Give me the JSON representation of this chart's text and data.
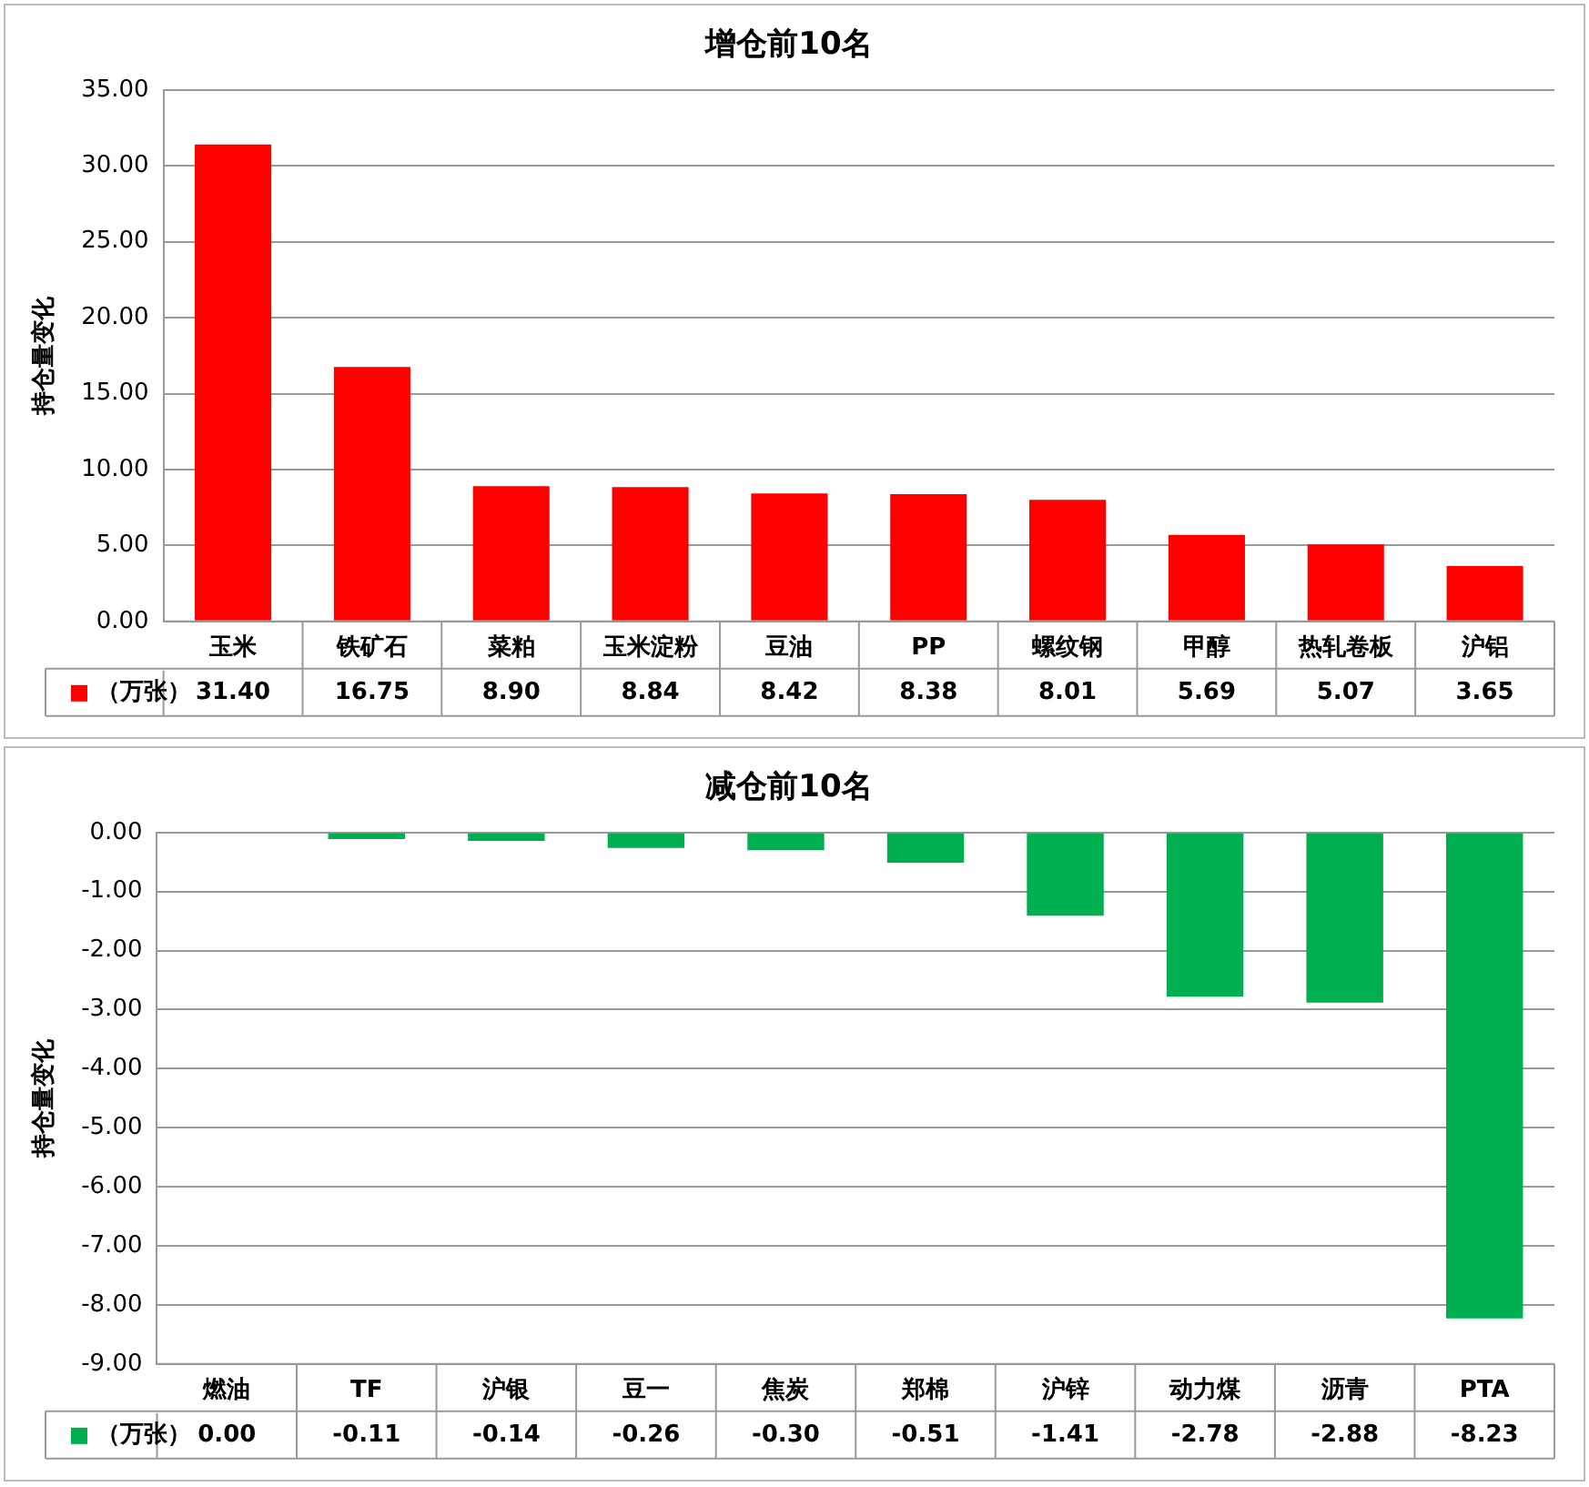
{
  "chart_data": [
    {
      "type": "bar",
      "title": "增仓前10名",
      "ylabel": "持仓量变化",
      "categories": [
        "玉米",
        "铁矿石",
        "菜粕",
        "玉米淀粉",
        "豆油",
        "PP",
        "螺纹钢",
        "甲醇",
        "热轧卷板",
        "沪铝"
      ],
      "series": [
        {
          "name": "（万张）",
          "color": "#ff0000",
          "values": [
            31.4,
            16.75,
            8.9,
            8.84,
            8.42,
            8.38,
            8.01,
            5.69,
            5.07,
            3.65
          ],
          "value_labels": [
            "31.40",
            "16.75",
            "8.90",
            "8.84",
            "8.42",
            "8.38",
            "8.01",
            "5.69",
            "5.07",
            "3.65"
          ]
        }
      ],
      "ylim": [
        0,
        35
      ],
      "yticks": [
        {
          "value": 0,
          "label": "0.00"
        },
        {
          "value": 5,
          "label": "5.00"
        },
        {
          "value": 10,
          "label": "10.00"
        },
        {
          "value": 15,
          "label": "15.00"
        },
        {
          "value": 20,
          "label": "20.00"
        },
        {
          "value": 25,
          "label": "25.00"
        },
        {
          "value": 30,
          "label": "30.00"
        },
        {
          "value": 35,
          "label": "35.00"
        }
      ],
      "grid": "y",
      "legend": "bottom"
    },
    {
      "type": "bar",
      "title": "减仓前10名",
      "ylabel": "持仓量变化",
      "categories": [
        "燃油",
        "TF",
        "沪银",
        "豆一",
        "焦炭",
        "郑棉",
        "沪锌",
        "动力煤",
        "沥青",
        "PTA"
      ],
      "series": [
        {
          "name": "（万张）",
          "color": "#00b050",
          "values": [
            0.0,
            -0.11,
            -0.14,
            -0.26,
            -0.3,
            -0.51,
            -1.41,
            -2.78,
            -2.88,
            -8.23
          ],
          "value_labels": [
            "0.00",
            "-0.11",
            "-0.14",
            "-0.26",
            "-0.30",
            "-0.51",
            "-1.41",
            "-2.78",
            "-2.88",
            "-8.23"
          ]
        }
      ],
      "ylim": [
        -9,
        0
      ],
      "yticks": [
        {
          "value": 0,
          "label": "0.00"
        },
        {
          "value": -1,
          "label": "-1.00"
        },
        {
          "value": -2,
          "label": "-2.00"
        },
        {
          "value": -3,
          "label": "-3.00"
        },
        {
          "value": -4,
          "label": "-4.00"
        },
        {
          "value": -5,
          "label": "-5.00"
        },
        {
          "value": -6,
          "label": "-6.00"
        },
        {
          "value": -7,
          "label": "-7.00"
        },
        {
          "value": -8,
          "label": "-8.00"
        },
        {
          "value": -9,
          "label": "-9.00"
        }
      ],
      "grid": "y",
      "legend": "bottom"
    }
  ]
}
